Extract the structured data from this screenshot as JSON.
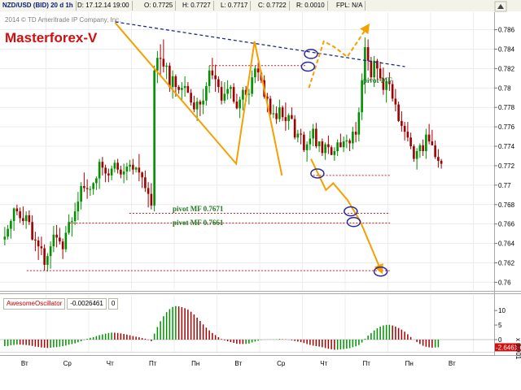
{
  "header": {
    "symbol": "NZD/USD (BID) 20 d 1h",
    "date": "D: 17.12.14 19:00",
    "open": "O: 0.7725",
    "high": "H: 0.7727",
    "low": "L: 0.7717",
    "close": "C: 0.7722",
    "range": "R: 0.0010",
    "fpl": "FPL: N/A"
  },
  "copyright": "2014 © TD Ameritrade IP Company, Inc.",
  "brand": "Masterforex-V",
  "colors": {
    "up_candle": "#009000",
    "down_candle": "#a00000",
    "pattern": "#f5a000",
    "trendline": "#1c2b8a",
    "pivot_line": "#d02020",
    "pivot_text": "#207820",
    "circle": "#2a2aa0"
  },
  "chart_data": [
    {
      "type": "candlestick",
      "title": "NZD/USD (BID) 20 d 1h",
      "y_axis_side": "right",
      "ylim": [
        0.7592,
        0.7878
      ],
      "y_ticks": [
        "0.786",
        "0.784",
        "0.782",
        "0.78",
        "0.778",
        "0.776",
        "0.774",
        "0.772",
        "0.77",
        "0.768",
        "0.766",
        "0.764",
        "0.762",
        "0.76"
      ],
      "x_labels": [
        "Вт",
        "Ср",
        "Чт",
        "Пт",
        "Пн",
        "Вт",
        "Ср",
        "Чт",
        "Пт",
        "Пн",
        "Вт"
      ],
      "pivot_labels": [
        {
          "text": "pivot MF",
          "price": 0.7823
        },
        {
          "text": "pivot MF 0.7671",
          "price": 0.7671
        },
        {
          "text": "pivot MF 0.7661",
          "price": 0.7661
        }
      ],
      "pivot_lines": [
        {
          "from_day": 4.82,
          "to_day": 7.1,
          "price": 0.7823
        },
        {
          "from_day": 7.25,
          "to_day": 9.05,
          "price": 0.771
        },
        {
          "from_day": 2.95,
          "to_day": 9.05,
          "price": 0.7671
        },
        {
          "from_day": 1.55,
          "to_day": 9.05,
          "price": 0.7661
        },
        {
          "from_day": 0.55,
          "to_day": 9.05,
          "price": 0.7612
        }
      ],
      "trendline": {
        "from": [
          2.62,
          0.7868
        ],
        "to": [
          9.4,
          0.7822
        ]
      },
      "zigzag_pattern": [
        [
          2.62,
          0.7867
        ],
        [
          5.45,
          0.7722
        ],
        [
          5.88,
          0.7848
        ],
        [
          6.52,
          0.771
        ]
      ],
      "projection_down": [
        [
          7.2,
          0.7727
        ],
        [
          7.55,
          0.7695
        ],
        [
          7.72,
          0.7702
        ],
        [
          8.05,
          0.7685
        ],
        [
          8.35,
          0.7663
        ],
        [
          8.86,
          0.761
        ]
      ],
      "projection_up": [
        [
          7.15,
          0.78
        ],
        [
          7.5,
          0.7848
        ],
        [
          7.75,
          0.7842
        ],
        [
          8.05,
          0.7832
        ],
        [
          8.55,
          0.7865
        ]
      ],
      "marker_circles": [
        [
          7.2,
          0.7835
        ],
        [
          7.13,
          0.7822
        ],
        [
          7.35,
          0.7712
        ],
        [
          8.13,
          0.7673
        ],
        [
          8.2,
          0.7662
        ],
        [
          8.83,
          0.7611
        ]
      ],
      "candles": [
        [
          0.7644,
          0.7657,
          0.7638,
          0.7647
        ],
        [
          0.7647,
          0.7659,
          0.7644,
          0.7655
        ],
        [
          0.7655,
          0.7665,
          0.7645,
          0.7663
        ],
        [
          0.7663,
          0.7677,
          0.7653,
          0.7676
        ],
        [
          0.7676,
          0.768,
          0.7669,
          0.7673
        ],
        [
          0.7673,
          0.7677,
          0.7661,
          0.7666
        ],
        [
          0.7666,
          0.7678,
          0.7659,
          0.7663
        ],
        [
          0.7663,
          0.7673,
          0.7655,
          0.7669
        ],
        [
          0.7669,
          0.7674,
          0.7659,
          0.7662
        ],
        [
          0.7662,
          0.7669,
          0.7643,
          0.7644
        ],
        [
          0.7644,
          0.7652,
          0.7632,
          0.7643
        ],
        [
          0.7643,
          0.7647,
          0.7623,
          0.7637
        ],
        [
          0.7637,
          0.7647,
          0.7628,
          0.7635
        ],
        [
          0.7635,
          0.7639,
          0.7612,
          0.7618
        ],
        [
          0.7618,
          0.763,
          0.7611,
          0.7627
        ],
        [
          0.7627,
          0.7642,
          0.7614,
          0.7637
        ],
        [
          0.7637,
          0.7658,
          0.7631,
          0.7649
        ],
        [
          0.7649,
          0.7659,
          0.7636,
          0.7646
        ],
        [
          0.7646,
          0.7656,
          0.7639,
          0.7642
        ],
        [
          0.7642,
          0.7645,
          0.7624,
          0.7634
        ],
        [
          0.7634,
          0.7658,
          0.7631,
          0.7651
        ],
        [
          0.7651,
          0.767,
          0.7649,
          0.7662
        ],
        [
          0.7662,
          0.7667,
          0.7647,
          0.7663
        ],
        [
          0.7663,
          0.7682,
          0.7659,
          0.7673
        ],
        [
          0.7673,
          0.7693,
          0.7664,
          0.7683
        ],
        [
          0.7683,
          0.7703,
          0.7675,
          0.7699
        ],
        [
          0.7699,
          0.7713,
          0.7693,
          0.7697
        ],
        [
          0.7697,
          0.7706,
          0.7686,
          0.7696
        ],
        [
          0.7696,
          0.7699,
          0.7689,
          0.7696
        ],
        [
          0.7696,
          0.7703,
          0.769,
          0.7702
        ],
        [
          0.7702,
          0.7709,
          0.7695,
          0.7707
        ],
        [
          0.7707,
          0.7727,
          0.7696,
          0.7724
        ],
        [
          0.7724,
          0.7729,
          0.771,
          0.7718
        ],
        [
          0.7718,
          0.7721,
          0.7703,
          0.7712
        ],
        [
          0.7712,
          0.7717,
          0.7703,
          0.771
        ],
        [
          0.771,
          0.772,
          0.7705,
          0.7717
        ],
        [
          0.7717,
          0.7726,
          0.7713,
          0.7723
        ],
        [
          0.7723,
          0.7727,
          0.7712,
          0.7716
        ],
        [
          0.7716,
          0.772,
          0.7707,
          0.7711
        ],
        [
          0.7711,
          0.7722,
          0.7702,
          0.7714
        ],
        [
          0.7714,
          0.7723,
          0.7705,
          0.7719
        ],
        [
          0.7719,
          0.7726,
          0.7714,
          0.7721
        ],
        [
          0.7721,
          0.7727,
          0.7711,
          0.7716
        ],
        [
          0.7716,
          0.7719,
          0.7713,
          0.7718
        ],
        [
          0.7718,
          0.7732,
          0.7704,
          0.7713
        ],
        [
          0.7713,
          0.7714,
          0.7697,
          0.7708
        ],
        [
          0.7708,
          0.7715,
          0.7693,
          0.7697
        ],
        [
          0.7697,
          0.7703,
          0.7677,
          0.7691
        ],
        [
          0.7691,
          0.7702,
          0.7675,
          0.7679
        ],
        [
          0.7679,
          0.7823,
          0.7673,
          0.7818
        ],
        [
          0.7818,
          0.7838,
          0.7805,
          0.7831
        ],
        [
          0.7831,
          0.7845,
          0.7812,
          0.783
        ],
        [
          0.783,
          0.785,
          0.7816,
          0.7822
        ],
        [
          0.7822,
          0.7826,
          0.7809,
          0.7823
        ],
        [
          0.7823,
          0.7826,
          0.7796,
          0.7801
        ],
        [
          0.7801,
          0.7818,
          0.7789,
          0.7812
        ],
        [
          0.7812,
          0.7814,
          0.7791,
          0.7801
        ],
        [
          0.7801,
          0.7803,
          0.7794,
          0.7798
        ],
        [
          0.7798,
          0.7806,
          0.7787,
          0.78
        ],
        [
          0.78,
          0.7812,
          0.7791,
          0.7802
        ],
        [
          0.7802,
          0.7806,
          0.7795,
          0.7795
        ],
        [
          0.7795,
          0.7799,
          0.7782,
          0.7785
        ],
        [
          0.7785,
          0.7792,
          0.7775,
          0.7778
        ],
        [
          0.7778,
          0.779,
          0.7766,
          0.7786
        ],
        [
          0.7786,
          0.7788,
          0.7771,
          0.7783
        ],
        [
          0.7783,
          0.7799,
          0.7773,
          0.7787
        ],
        [
          0.7787,
          0.7806,
          0.7782,
          0.7802
        ],
        [
          0.7802,
          0.7823,
          0.7795,
          0.7818
        ],
        [
          0.7818,
          0.7831,
          0.7809,
          0.7813
        ],
        [
          0.7813,
          0.7824,
          0.7796,
          0.7809
        ],
        [
          0.7809,
          0.7812,
          0.7795,
          0.7801
        ],
        [
          0.7801,
          0.7807,
          0.7783,
          0.7787
        ],
        [
          0.7787,
          0.7806,
          0.7784,
          0.7794
        ],
        [
          0.7794,
          0.7808,
          0.7788,
          0.7799
        ],
        [
          0.7799,
          0.7803,
          0.7789,
          0.7801
        ],
        [
          0.7801,
          0.7805,
          0.7784,
          0.7786
        ],
        [
          0.7786,
          0.7794,
          0.7778,
          0.7779
        ],
        [
          0.7779,
          0.7791,
          0.7769,
          0.7788
        ],
        [
          0.7788,
          0.7801,
          0.7777,
          0.7798
        ],
        [
          0.7798,
          0.7802,
          0.7786,
          0.7793
        ],
        [
          0.7793,
          0.7799,
          0.7783,
          0.7794
        ],
        [
          0.7794,
          0.7818,
          0.7791,
          0.7811
        ],
        [
          0.7811,
          0.7823,
          0.7805,
          0.782
        ],
        [
          0.782,
          0.7826,
          0.7807,
          0.7816
        ],
        [
          0.7816,
          0.7818,
          0.7805,
          0.7808
        ],
        [
          0.7808,
          0.7813,
          0.7789,
          0.7791
        ],
        [
          0.7791,
          0.7795,
          0.7775,
          0.7789
        ],
        [
          0.7789,
          0.7792,
          0.7772,
          0.7773
        ],
        [
          0.7773,
          0.7783,
          0.7769,
          0.7774
        ],
        [
          0.7774,
          0.7781,
          0.7763,
          0.7768
        ],
        [
          0.7768,
          0.7788,
          0.7765,
          0.778
        ],
        [
          0.778,
          0.7782,
          0.7766,
          0.777
        ],
        [
          0.777,
          0.7785,
          0.7756,
          0.7766
        ],
        [
          0.7766,
          0.7774,
          0.7757,
          0.7772
        ],
        [
          0.7772,
          0.778,
          0.7768,
          0.7768
        ],
        [
          0.7768,
          0.7772,
          0.7747,
          0.7749
        ],
        [
          0.7749,
          0.7757,
          0.7744,
          0.7753
        ],
        [
          0.7753,
          0.7758,
          0.7742,
          0.7752
        ],
        [
          0.7752,
          0.7755,
          0.7734,
          0.7736
        ],
        [
          0.7736,
          0.7745,
          0.7724,
          0.7742
        ],
        [
          0.7742,
          0.7756,
          0.7736,
          0.7748
        ],
        [
          0.7748,
          0.7763,
          0.774,
          0.7758
        ],
        [
          0.7758,
          0.7764,
          0.7738,
          0.774
        ],
        [
          0.774,
          0.7745,
          0.7734,
          0.7745
        ],
        [
          0.7745,
          0.7748,
          0.773,
          0.7733
        ],
        [
          0.7733,
          0.7744,
          0.7726,
          0.7742
        ],
        [
          0.7742,
          0.7751,
          0.7732,
          0.7739
        ],
        [
          0.7739,
          0.7741,
          0.7731,
          0.7731
        ],
        [
          0.7731,
          0.7739,
          0.7725,
          0.7735
        ],
        [
          0.7735,
          0.7747,
          0.773,
          0.7744
        ],
        [
          0.7744,
          0.7753,
          0.7739,
          0.7739
        ],
        [
          0.7739,
          0.775,
          0.7734,
          0.7745
        ],
        [
          0.7745,
          0.7752,
          0.7738,
          0.7746
        ],
        [
          0.7746,
          0.7748,
          0.7735,
          0.7743
        ],
        [
          0.7743,
          0.776,
          0.7737,
          0.7755
        ],
        [
          0.7755,
          0.7765,
          0.7744,
          0.7752
        ],
        [
          0.7752,
          0.778,
          0.7745,
          0.7775
        ],
        [
          0.7775,
          0.7815,
          0.7767,
          0.7808
        ],
        [
          0.7808,
          0.7852,
          0.7794,
          0.7842
        ],
        [
          0.7842,
          0.785,
          0.7818,
          0.7828
        ],
        [
          0.7828,
          0.7832,
          0.7808,
          0.7811
        ],
        [
          0.7811,
          0.7833,
          0.7801,
          0.7828
        ],
        [
          0.7828,
          0.783,
          0.7809,
          0.782
        ],
        [
          0.782,
          0.7827,
          0.7807,
          0.781
        ],
        [
          0.781,
          0.7821,
          0.7793,
          0.7798
        ],
        [
          0.7798,
          0.7809,
          0.7785,
          0.7807
        ],
        [
          0.7807,
          0.7816,
          0.7797,
          0.7804
        ],
        [
          0.7804,
          0.7808,
          0.7786,
          0.7789
        ],
        [
          0.7789,
          0.7799,
          0.7776,
          0.7783
        ],
        [
          0.7783,
          0.7786,
          0.7765,
          0.7766
        ],
        [
          0.7766,
          0.7776,
          0.7755,
          0.7761
        ],
        [
          0.7761,
          0.7765,
          0.7746,
          0.7755
        ],
        [
          0.7755,
          0.7765,
          0.7745,
          0.7749
        ],
        [
          0.7749,
          0.7754,
          0.7737,
          0.774
        ],
        [
          0.774,
          0.7742,
          0.7724,
          0.7727
        ],
        [
          0.7727,
          0.7738,
          0.7716,
          0.7735
        ],
        [
          0.7735,
          0.7743,
          0.7728,
          0.7741
        ],
        [
          0.7741,
          0.7747,
          0.773,
          0.7735
        ],
        [
          0.7735,
          0.7758,
          0.7727,
          0.7752
        ],
        [
          0.7752,
          0.7763,
          0.7742,
          0.7745
        ],
        [
          0.7745,
          0.7757,
          0.7741,
          0.7741
        ],
        [
          0.7741,
          0.7746,
          0.7727,
          0.7729
        ],
        [
          0.7729,
          0.7737,
          0.7718,
          0.7725
        ],
        [
          0.7725,
          0.7727,
          0.7717,
          0.7722
        ]
      ]
    },
    {
      "type": "bar",
      "title": "AwesomeOscillator",
      "value_label": "-0.0026461",
      "param_label": "0",
      "ylim": [
        -0.0042,
        0.012
      ],
      "y_ticks": [
        "10",
        "5",
        "0"
      ],
      "y_tick_values": [
        10,
        5,
        0
      ],
      "current_value_label": "-2.6461",
      "scale_note": "x 0.001",
      "x_labels": [
        "Вт",
        "Ср",
        "Чт",
        "Пт",
        "Пн",
        "Вт",
        "Ср",
        "Чт",
        "Пт",
        "Пн",
        "Вт"
      ],
      "values": [
        -0.00223,
        -0.002216,
        -0.001943,
        -0.001854,
        -0.001713,
        -0.00173,
        -0.001803,
        -0.001856,
        -0.002002,
        -0.002186,
        -0.002413,
        -0.002571,
        -0.002677,
        -0.002781,
        -0.002884,
        -0.002808,
        -0.002674,
        -0.002615,
        -0.002413,
        -0.002263,
        -0.002034,
        -0.001747,
        -0.001552,
        -0.001295,
        -0.000917,
        -0.000587,
        -0.000146,
        0.00025,
        0.000621,
        0.00087,
        0.001205,
        0.00154,
        0.001803,
        0.002064,
        0.002264,
        0.002401,
        0.002363,
        0.002286,
        0.002143,
        0.001939,
        0.001728,
        0.00149,
        0.001215,
        0.001006,
        0.000791,
        0.000524,
        0.000295,
        -0.000137,
        -0.000519,
        0.002054,
        0.004325,
        0.006319,
        0.008025,
        0.009444,
        0.010471,
        0.011229,
        0.011523,
        0.011414,
        0.011164,
        0.010803,
        0.010286,
        0.009584,
        0.008642,
        0.007546,
        0.00639,
        0.005213,
        0.004096,
        0.00315,
        0.002274,
        0.001543,
        0.000827,
        0.000209,
        -0.000257,
        -0.000572,
        -0.000849,
        -0.001131,
        -0.001446,
        -0.001511,
        -0.001515,
        -0.00149,
        -0.001359,
        -0.00098,
        -0.000669,
        -0.00037,
        -9.4e-05,
        4e-05,
        4.1e-05,
        3.1e-05,
        4.9e-05,
        7.6e-05,
        0.000208,
        0.000133,
        8.9e-05,
        -4.7e-05,
        -0.000231,
        -0.000462,
        -0.000684,
        -0.000873,
        -0.001186,
        -0.00153,
        -0.001818,
        -0.002075,
        -0.002245,
        -0.002419,
        -0.002637,
        -0.002911,
        -0.003155,
        -0.00333,
        -0.003488,
        -0.003473,
        -0.003375,
        -0.003267,
        -0.003118,
        -0.002928,
        -0.002618,
        -0.002311,
        -0.001876,
        -0.001006,
        0.000293,
        0.001382,
        0.002242,
        0.003162,
        0.003883,
        0.004482,
        0.004868,
        0.005073,
        0.005094,
        0.004846,
        0.004468,
        0.003991,
        0.003439,
        0.002707,
        0.001843,
        0.000897,
        2.3e-05,
        -0.000813,
        -0.001526,
        -0.002119,
        -0.002444,
        -0.002665,
        -0.002763,
        -0.002723,
        -0.002646
      ]
    }
  ]
}
